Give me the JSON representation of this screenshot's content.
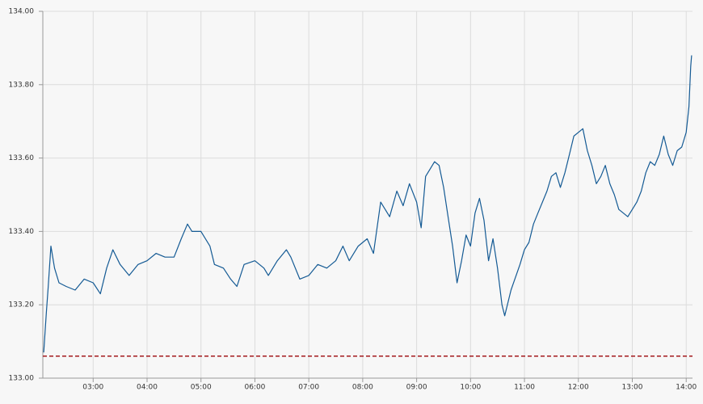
{
  "chart_data": {
    "type": "line",
    "x": [
      "02:05",
      "02:08",
      "02:10",
      "02:13",
      "02:17",
      "02:22",
      "02:30",
      "02:40",
      "02:50",
      "03:00",
      "03:08",
      "03:15",
      "03:22",
      "03:30",
      "03:40",
      "03:50",
      "04:00",
      "04:10",
      "04:20",
      "04:30",
      "04:38",
      "04:45",
      "04:50",
      "05:00",
      "05:10",
      "05:15",
      "05:25",
      "05:33",
      "05:40",
      "05:48",
      "06:00",
      "06:10",
      "06:15",
      "06:25",
      "06:35",
      "06:40",
      "06:50",
      "07:00",
      "07:10",
      "07:20",
      "07:30",
      "07:38",
      "07:45",
      "07:55",
      "08:05",
      "08:12",
      "08:20",
      "08:25",
      "08:30",
      "08:38",
      "08:45",
      "08:52",
      "09:00",
      "09:05",
      "09:10",
      "09:15",
      "09:20",
      "09:25",
      "09:30",
      "09:35",
      "09:40",
      "09:45",
      "09:50",
      "09:55",
      "10:00",
      "10:05",
      "10:10",
      "10:15",
      "10:20",
      "10:25",
      "10:30",
      "10:35",
      "10:38",
      "10:45",
      "10:55",
      "11:00",
      "11:05",
      "11:10",
      "11:15",
      "11:20",
      "11:25",
      "11:30",
      "11:35",
      "11:40",
      "11:45",
      "11:50",
      "11:55",
      "12:00",
      "12:05",
      "12:10",
      "12:15",
      "12:20",
      "12:25",
      "12:30",
      "12:35",
      "12:40",
      "12:45",
      "12:50",
      "12:55",
      "13:00",
      "13:05",
      "13:10",
      "13:15",
      "13:20",
      "13:25",
      "13:30",
      "13:35",
      "13:40",
      "13:45",
      "13:50",
      "13:55",
      "14:00",
      "14:03",
      "14:05",
      "14:06"
    ],
    "series": [
      {
        "color": "#145a94",
        "values": [
          133.07,
          133.18,
          133.25,
          133.36,
          133.3,
          133.26,
          133.25,
          133.24,
          133.27,
          133.26,
          133.23,
          133.3,
          133.35,
          133.31,
          133.28,
          133.31,
          133.32,
          133.34,
          133.33,
          133.33,
          133.38,
          133.42,
          133.4,
          133.4,
          133.36,
          133.31,
          133.3,
          133.27,
          133.25,
          133.31,
          133.32,
          133.3,
          133.28,
          133.32,
          133.35,
          133.33,
          133.27,
          133.28,
          133.31,
          133.3,
          133.32,
          133.36,
          133.32,
          133.36,
          133.38,
          133.34,
          133.48,
          133.46,
          133.44,
          133.51,
          133.47,
          133.53,
          133.48,
          133.41,
          133.55,
          133.57,
          133.59,
          133.58,
          133.52,
          133.44,
          133.36,
          133.26,
          133.32,
          133.39,
          133.36,
          133.45,
          133.49,
          133.43,
          133.32,
          133.38,
          133.3,
          133.2,
          133.17,
          133.24,
          133.31,
          133.35,
          133.37,
          133.42,
          133.45,
          133.48,
          133.51,
          133.55,
          133.56,
          133.52,
          133.56,
          133.61,
          133.66,
          133.67,
          133.68,
          133.62,
          133.58,
          133.53,
          133.55,
          133.58,
          133.53,
          133.5,
          133.46,
          133.45,
          133.44,
          133.46,
          133.48,
          133.51,
          133.56,
          133.59,
          133.58,
          133.61,
          133.66,
          133.61,
          133.58,
          133.62,
          133.63,
          133.67,
          133.74,
          133.85,
          133.88
        ]
      }
    ],
    "reference_lines": [
      {
        "value": 133.06,
        "color": "#a3191c",
        "style": "dashed"
      }
    ],
    "xlim": [
      "02:04",
      "14:07"
    ],
    "xticks": [
      "03:00",
      "04:00",
      "05:00",
      "06:00",
      "07:00",
      "08:00",
      "09:00",
      "10:00",
      "11:00",
      "12:00",
      "13:00",
      "14:00"
    ],
    "ylim": [
      133.0,
      134.0
    ],
    "yticks": [
      {
        "value": 133.0,
        "label": "133.00"
      },
      {
        "value": 133.2,
        "label": "133.20"
      },
      {
        "value": 133.4,
        "label": "133.40"
      },
      {
        "value": 133.6,
        "label": "133.60"
      },
      {
        "value": 133.8,
        "label": "133.80"
      },
      {
        "value": 134.0,
        "label": "134.00"
      }
    ],
    "grid": true
  }
}
